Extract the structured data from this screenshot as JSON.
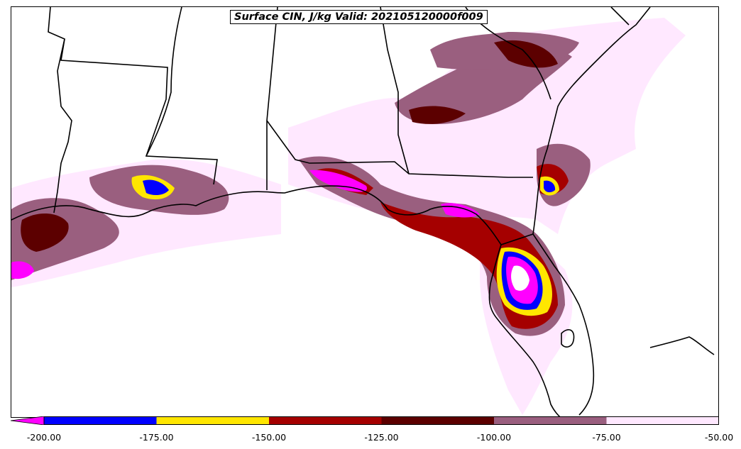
{
  "title": "Surface CIN, J/kg Valid: 202105120000f009",
  "colorbar": {
    "colors": [
      "#ff00ff",
      "#0000ff",
      "#ffe600",
      "#a50000",
      "#5c0000",
      "#9a5f7f",
      "#ffe8ff"
    ],
    "bounds": [
      -200,
      -175,
      -150,
      -125,
      -100,
      -75,
      -50
    ],
    "tick_labels": [
      "-200.00",
      "-175.00",
      "-150.00",
      "-125.00",
      "-100.00",
      "-75.00",
      "-50.00"
    ],
    "extend": "min"
  }
}
